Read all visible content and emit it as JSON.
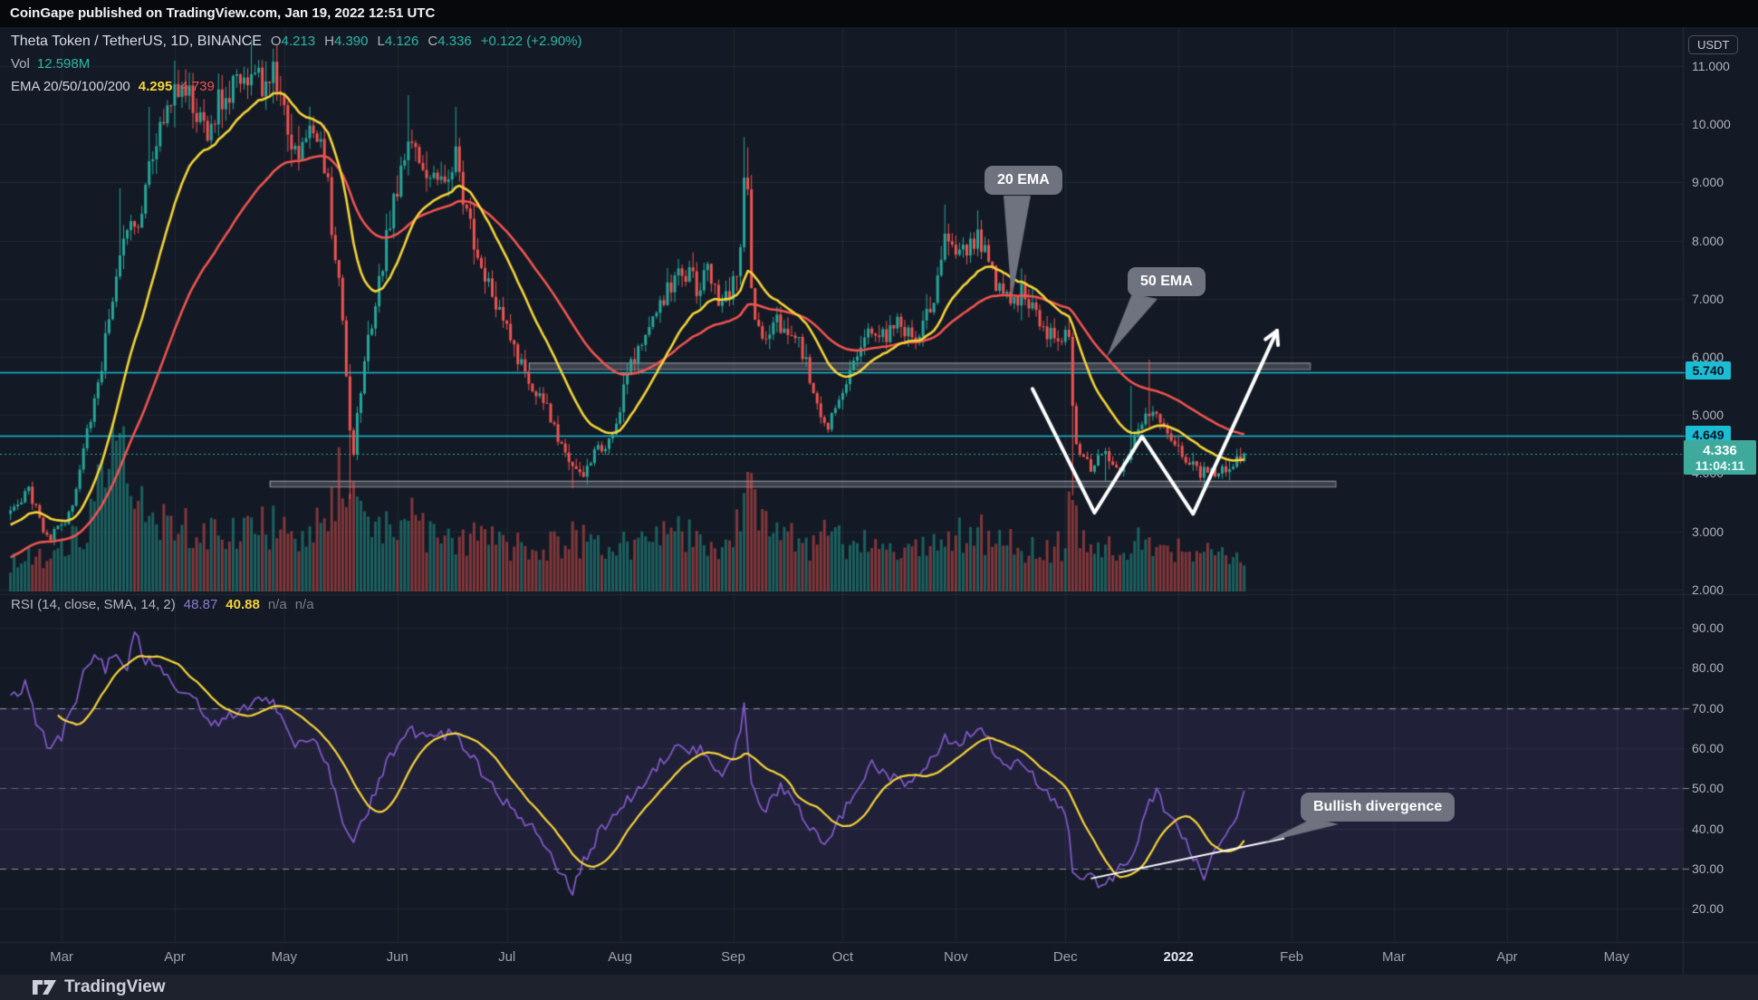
{
  "header": {
    "text": "CoinGape published on TradingView.com, Jan 19, 2022 12:51 UTC"
  },
  "legend": {
    "symbol_title": "Theta Token / TetherUS, 1D, BINANCE",
    "ohlc": [
      {
        "label": "O",
        "value": "4.213"
      },
      {
        "label": "H",
        "value": "4.390"
      },
      {
        "label": "L",
        "value": "4.126"
      },
      {
        "label": "C",
        "value": "4.336"
      }
    ],
    "change": "+0.122 (+2.90%)",
    "volume_label": "Vol",
    "volume_value": "12.598M",
    "ema_label": "EMA 20/50/100/200",
    "ema_values": [
      "4.295",
      "4.739"
    ],
    "rsi_label": "RSI (14, close, SMA, 14, 2)",
    "rsi_values": [
      "48.87",
      "40.88",
      "n/a",
      "n/a"
    ]
  },
  "price_axis": {
    "currency": "USDT",
    "ticks": [
      "11.000",
      "10.000",
      "9.000",
      "8.000",
      "7.000",
      "6.000",
      "5.000",
      "4.000",
      "3.000",
      "2.000"
    ],
    "level_labels": [
      {
        "text": "5.740",
        "price": 5.74
      },
      {
        "text": "4.649",
        "price": 4.649
      }
    ],
    "last_price": {
      "value": "4.336",
      "countdown": "11:04:11"
    }
  },
  "rsi_axis": {
    "ticks": [
      "90.00",
      "80.00",
      "70.00",
      "60.00",
      "50.00",
      "40.00",
      "30.00",
      "20.00"
    ]
  },
  "time_axis": {
    "labels": [
      {
        "text": "Mar",
        "t": 0
      },
      {
        "text": "Apr",
        "t": 31
      },
      {
        "text": "May",
        "t": 61
      },
      {
        "text": "Jun",
        "t": 92
      },
      {
        "text": "Jul",
        "t": 122
      },
      {
        "text": "Aug",
        "t": 153
      },
      {
        "text": "Sep",
        "t": 184
      },
      {
        "text": "Oct",
        "t": 214
      },
      {
        "text": "Nov",
        "t": 245
      },
      {
        "text": "Dec",
        "t": 275
      },
      {
        "text": "2022",
        "t": 306,
        "bold": true
      },
      {
        "text": "Feb",
        "t": 337
      },
      {
        "text": "Mar",
        "t": 365
      },
      {
        "text": "Apr",
        "t": 396
      },
      {
        "text": "May",
        "t": 426
      }
    ]
  },
  "annotations": {
    "ema20": "20 EMA",
    "ema50": "50 EMA",
    "bullish": "Bullish divergence"
  },
  "footer": {
    "brand": "TradingView"
  },
  "colors": {
    "background": "#131a25",
    "header_bg": "#07080c",
    "footer_bg": "#1d222c",
    "grid": "rgba(255,255,255,0.06)",
    "separator": "#262b36",
    "up": "#26a69a",
    "down": "#ef5350",
    "vol_up": "rgba(38,166,154,0.5)",
    "vol_down": "rgba(239,83,80,0.5)",
    "ema20": "#f5d33a",
    "ema50": "#ef5350",
    "rsi": "#7e57c2",
    "rsi_sma": "#f5d33a",
    "level_line": "#1cbdd4",
    "last_price_line": "#26a69a",
    "zone_fill": "rgba(140,143,153,0.35)",
    "zone_border": "rgba(220,223,230,0.6)",
    "annotation_white": "#ffffff",
    "bubble_bg": "#6f7380",
    "band_fill": "rgba(126,87,194,0.13)",
    "dash_line": "rgba(255,255,255,0.5)",
    "dash_line_mid": "rgba(255,255,255,0.28)"
  },
  "chart_data": {
    "type": "candlestick",
    "symbol": "Theta Token / TetherUS",
    "interval": "1D",
    "exchange": "BINANCE",
    "panes": [
      "price+volume",
      "RSI"
    ],
    "price_axis_range": [
      2.0,
      11.65
    ],
    "rsi_axis_range": [
      20,
      90
    ],
    "time_start_days_before_mar1": 14,
    "time_end_day": 324,
    "last_candle": {
      "open": 4.213,
      "high": 4.39,
      "low": 4.126,
      "close": 4.336
    },
    "price_anchors": [
      [
        -14,
        3.3
      ],
      [
        -11,
        3.55
      ],
      [
        -9,
        3.75
      ],
      [
        -7,
        3.4
      ],
      [
        -5,
        3.0
      ],
      [
        -3,
        2.9
      ],
      [
        -1,
        3.05
      ],
      [
        1,
        3.15
      ],
      [
        3,
        3.5
      ],
      [
        5,
        4.1
      ],
      [
        7,
        4.7
      ],
      [
        9,
        5.3
      ],
      [
        11,
        5.9
      ],
      [
        13,
        6.6
      ],
      [
        15,
        7.4
      ],
      [
        17,
        8.0
      ],
      [
        19,
        8.5
      ],
      [
        21,
        8.3
      ],
      [
        23,
        8.9
      ],
      [
        25,
        9.5
      ],
      [
        27,
        9.8
      ],
      [
        29,
        10.2
      ],
      [
        31,
        10.5
      ],
      [
        34,
        10.7
      ],
      [
        37,
        10.2
      ],
      [
        40,
        9.8
      ],
      [
        43,
        10.3
      ],
      [
        46,
        10.6
      ],
      [
        49,
        10.8
      ],
      [
        52,
        10.9
      ],
      [
        55,
        10.7
      ],
      [
        58,
        10.9
      ],
      [
        61,
        10.3
      ],
      [
        63,
        9.8
      ],
      [
        65,
        9.4
      ],
      [
        67,
        9.7
      ],
      [
        69,
        9.9
      ],
      [
        71,
        9.6
      ],
      [
        73,
        8.9
      ],
      [
        74,
        8.2
      ],
      [
        76,
        7.2
      ],
      [
        77,
        6.5
      ],
      [
        78,
        5.6
      ],
      [
        79,
        4.6
      ],
      [
        80,
        4.3
      ],
      [
        81,
        5.0
      ],
      [
        83,
        5.8
      ],
      [
        85,
        6.6
      ],
      [
        87,
        7.3
      ],
      [
        88,
        7.6
      ],
      [
        90,
        8.4
      ],
      [
        92,
        9.0
      ],
      [
        94,
        9.4
      ],
      [
        96,
        9.6
      ],
      [
        98,
        9.2
      ],
      [
        100,
        8.9
      ],
      [
        102,
        9.1
      ],
      [
        104,
        9.0
      ],
      [
        106,
        9.3
      ],
      [
        108,
        9.4
      ],
      [
        110,
        8.7
      ],
      [
        112,
        8.3
      ],
      [
        114,
        7.8
      ],
      [
        117,
        7.2
      ],
      [
        120,
        6.8
      ],
      [
        123,
        6.3
      ],
      [
        126,
        5.9
      ],
      [
        129,
        5.5
      ],
      [
        132,
        5.2
      ],
      [
        135,
        4.8
      ],
      [
        138,
        4.4
      ],
      [
        141,
        4.1
      ],
      [
        143,
        3.95
      ],
      [
        145,
        4.2
      ],
      [
        147,
        4.5
      ],
      [
        149,
        4.4
      ],
      [
        151,
        4.7
      ],
      [
        153,
        5.1
      ],
      [
        156,
        5.9
      ],
      [
        159,
        6.3
      ],
      [
        162,
        6.7
      ],
      [
        165,
        7.0
      ],
      [
        168,
        7.3
      ],
      [
        171,
        7.5
      ],
      [
        174,
        7.2
      ],
      [
        177,
        7.4
      ],
      [
        180,
        6.9
      ],
      [
        183,
        7.1
      ],
      [
        185,
        7.4
      ],
      [
        186,
        8.0
      ],
      [
        187,
        9.0
      ],
      [
        188,
        8.8
      ],
      [
        189,
        7.0
      ],
      [
        191,
        6.4
      ],
      [
        193,
        6.2
      ],
      [
        196,
        6.6
      ],
      [
        199,
        6.5
      ],
      [
        202,
        6.2
      ],
      [
        204,
        5.9
      ],
      [
        206,
        5.4
      ],
      [
        208,
        5.0
      ],
      [
        210,
        4.85
      ],
      [
        212,
        5.1
      ],
      [
        214,
        5.5
      ],
      [
        217,
        5.9
      ],
      [
        220,
        6.3
      ],
      [
        223,
        6.5
      ],
      [
        226,
        6.3
      ],
      [
        229,
        6.6
      ],
      [
        232,
        6.4
      ],
      [
        235,
        6.3
      ],
      [
        236,
        6.5
      ],
      [
        239,
        7.0
      ],
      [
        242,
        8.0
      ],
      [
        245,
        7.7
      ],
      [
        248,
        7.9
      ],
      [
        251,
        8.1
      ],
      [
        254,
        7.6
      ],
      [
        257,
        7.2
      ],
      [
        260,
        6.9
      ],
      [
        263,
        7.1
      ],
      [
        266,
        6.8
      ],
      [
        269,
        6.5
      ],
      [
        272,
        6.4
      ],
      [
        274,
        6.3
      ],
      [
        276,
        6.35
      ],
      [
        277,
        5.1
      ],
      [
        278,
        4.5
      ],
      [
        280,
        4.3
      ],
      [
        282,
        4.05
      ],
      [
        284,
        4.2
      ],
      [
        286,
        4.4
      ],
      [
        288,
        4.15
      ],
      [
        290,
        4.05
      ],
      [
        292,
        4.2
      ],
      [
        294,
        4.7
      ],
      [
        296,
        4.9
      ],
      [
        298,
        5.1
      ],
      [
        300,
        4.95
      ],
      [
        302,
        4.75
      ],
      [
        304,
        4.55
      ],
      [
        306,
        4.4
      ],
      [
        308,
        4.25
      ],
      [
        310,
        4.1
      ],
      [
        312,
        3.98
      ],
      [
        314,
        4.05
      ],
      [
        316,
        4.0
      ],
      [
        318,
        4.12
      ],
      [
        320,
        4.08
      ],
      [
        322,
        4.18
      ],
      [
        324,
        4.336
      ]
    ],
    "wick_spike_highs": {
      "16": 8.9,
      "24": 10.3,
      "52": 11.45,
      "58": 11.3,
      "95": 10.5,
      "108": 10.3,
      "187": 9.78,
      "188": 9.6,
      "242": 8.62,
      "251": 8.52,
      "293": 5.5,
      "298": 5.95
    },
    "wick_spike_lows": {
      "79": 3.55,
      "140": 3.74,
      "277": 3.62,
      "286": 3.85,
      "313": 3.74
    },
    "volume_anchors": [
      [
        -14,
        0.22
      ],
      [
        -8,
        0.3
      ],
      [
        -2,
        0.25
      ],
      [
        2,
        0.35
      ],
      [
        6,
        0.5
      ],
      [
        10,
        0.8
      ],
      [
        13,
        0.95
      ],
      [
        16,
        1.0
      ],
      [
        20,
        0.7
      ],
      [
        24,
        0.6
      ],
      [
        28,
        0.55
      ],
      [
        32,
        0.5
      ],
      [
        36,
        0.45
      ],
      [
        40,
        0.42
      ],
      [
        45,
        0.4
      ],
      [
        50,
        0.45
      ],
      [
        55,
        0.5
      ],
      [
        60,
        0.48
      ],
      [
        65,
        0.45
      ],
      [
        70,
        0.5
      ],
      [
        74,
        0.6
      ],
      [
        77,
        0.95
      ],
      [
        79,
        1.0
      ],
      [
        81,
        0.8
      ],
      [
        84,
        0.65
      ],
      [
        88,
        0.55
      ],
      [
        92,
        0.5
      ],
      [
        95,
        0.55
      ],
      [
        100,
        0.45
      ],
      [
        105,
        0.42
      ],
      [
        110,
        0.4
      ],
      [
        115,
        0.38
      ],
      [
        120,
        0.35
      ],
      [
        125,
        0.33
      ],
      [
        130,
        0.32
      ],
      [
        135,
        0.35
      ],
      [
        140,
        0.42
      ],
      [
        145,
        0.35
      ],
      [
        150,
        0.32
      ],
      [
        155,
        0.35
      ],
      [
        160,
        0.38
      ],
      [
        165,
        0.4
      ],
      [
        170,
        0.42
      ],
      [
        175,
        0.38
      ],
      [
        180,
        0.35
      ],
      [
        184,
        0.4
      ],
      [
        187,
        0.65
      ],
      [
        189,
        0.7
      ],
      [
        192,
        0.5
      ],
      [
        196,
        0.4
      ],
      [
        200,
        0.38
      ],
      [
        205,
        0.35
      ],
      [
        209,
        0.4
      ],
      [
        214,
        0.38
      ],
      [
        218,
        0.36
      ],
      [
        222,
        0.38
      ],
      [
        227,
        0.35
      ],
      [
        232,
        0.32
      ],
      [
        236,
        0.35
      ],
      [
        240,
        0.4
      ],
      [
        243,
        0.5
      ],
      [
        247,
        0.42
      ],
      [
        251,
        0.45
      ],
      [
        255,
        0.4
      ],
      [
        259,
        0.35
      ],
      [
        263,
        0.33
      ],
      [
        267,
        0.3
      ],
      [
        271,
        0.3
      ],
      [
        275,
        0.38
      ],
      [
        277,
        0.85
      ],
      [
        279,
        0.5
      ],
      [
        282,
        0.4
      ],
      [
        285,
        0.35
      ],
      [
        288,
        0.32
      ],
      [
        291,
        0.3
      ],
      [
        294,
        0.35
      ],
      [
        297,
        0.45
      ],
      [
        300,
        0.4
      ],
      [
        303,
        0.35
      ],
      [
        306,
        0.3
      ],
      [
        309,
        0.28
      ],
      [
        312,
        0.3
      ],
      [
        315,
        0.27
      ],
      [
        318,
        0.26
      ],
      [
        321,
        0.28
      ],
      [
        324,
        0.3
      ]
    ],
    "rsi_anchors": [
      [
        -14,
        72
      ],
      [
        -10,
        76
      ],
      [
        -6,
        64
      ],
      [
        -3,
        60
      ],
      [
        0,
        63
      ],
      [
        3,
        70
      ],
      [
        6,
        78
      ],
      [
        9,
        84
      ],
      [
        12,
        80
      ],
      [
        15,
        84
      ],
      [
        18,
        80
      ],
      [
        20,
        89
      ],
      [
        23,
        82
      ],
      [
        26,
        80
      ],
      [
        30,
        76
      ],
      [
        34,
        74
      ],
      [
        38,
        70
      ],
      [
        42,
        66
      ],
      [
        46,
        68
      ],
      [
        50,
        70
      ],
      [
        54,
        72
      ],
      [
        58,
        71
      ],
      [
        61,
        66
      ],
      [
        64,
        60
      ],
      [
        67,
        63
      ],
      [
        70,
        62
      ],
      [
        73,
        55
      ],
      [
        76,
        45
      ],
      [
        78,
        40
      ],
      [
        80,
        36
      ],
      [
        82,
        42
      ],
      [
        84,
        45
      ],
      [
        87,
        52
      ],
      [
        90,
        58
      ],
      [
        93,
        62
      ],
      [
        95,
        66
      ],
      [
        98,
        63
      ],
      [
        100,
        62
      ],
      [
        104,
        63
      ],
      [
        108,
        64
      ],
      [
        112,
        58
      ],
      [
        116,
        53
      ],
      [
        120,
        48
      ],
      [
        124,
        44
      ],
      [
        128,
        41
      ],
      [
        132,
        37
      ],
      [
        136,
        30
      ],
      [
        140,
        24
      ],
      [
        143,
        32
      ],
      [
        145,
        35
      ],
      [
        148,
        40
      ],
      [
        151,
        43
      ],
      [
        154,
        46
      ],
      [
        158,
        50
      ],
      [
        162,
        54
      ],
      [
        166,
        58
      ],
      [
        169,
        62
      ],
      [
        172,
        60
      ],
      [
        175,
        60
      ],
      [
        178,
        56
      ],
      [
        181,
        54
      ],
      [
        184,
        58
      ],
      [
        186,
        65
      ],
      [
        187,
        70
      ],
      [
        189,
        50
      ],
      [
        191,
        46
      ],
      [
        193,
        45
      ],
      [
        197,
        50
      ],
      [
        201,
        46
      ],
      [
        205,
        40
      ],
      [
        209,
        35
      ],
      [
        213,
        42
      ],
      [
        218,
        50
      ],
      [
        222,
        56
      ],
      [
        227,
        53
      ],
      [
        231,
        50
      ],
      [
        236,
        54
      ],
      [
        239,
        58
      ],
      [
        242,
        63
      ],
      [
        245,
        61
      ],
      [
        247,
        62
      ],
      [
        251,
        66
      ],
      [
        255,
        60
      ],
      [
        259,
        55
      ],
      [
        263,
        57
      ],
      [
        267,
        52
      ],
      [
        271,
        48
      ],
      [
        274,
        44
      ],
      [
        276,
        40
      ],
      [
        277,
        30
      ],
      [
        280,
        28
      ],
      [
        283,
        27
      ],
      [
        286,
        25.5
      ],
      [
        289,
        29
      ],
      [
        292,
        31
      ],
      [
        295,
        38
      ],
      [
        298,
        47
      ],
      [
        300,
        49
      ],
      [
        303,
        44
      ],
      [
        306,
        40
      ],
      [
        309,
        35
      ],
      [
        311,
        31
      ],
      [
        313,
        28.5
      ],
      [
        315,
        32
      ],
      [
        317,
        35
      ],
      [
        319,
        38
      ],
      [
        321,
        41
      ],
      [
        323,
        45
      ],
      [
        324,
        48.9
      ]
    ],
    "horizontal_levels": [
      5.74,
      4.649
    ],
    "last_price": 4.336,
    "zones": [
      {
        "name": "resistance-zone",
        "price_top": 5.9,
        "price_bottom": 5.79,
        "t_start": 128,
        "t_end": 342
      },
      {
        "name": "support-zone",
        "price_top": 3.87,
        "price_bottom": 3.77,
        "t_start": 57,
        "t_end": 349
      }
    ],
    "w_pattern_points": [
      [
        266,
        5.45
      ],
      [
        283,
        3.32
      ],
      [
        296,
        4.63
      ],
      [
        310,
        3.3
      ],
      [
        333,
        6.45
      ]
    ],
    "rsi_trendline": [
      [
        282,
        27.5
      ],
      [
        335,
        37.5
      ]
    ],
    "rsi_bands": {
      "upper": 70,
      "middle": 50,
      "lower": 30
    }
  }
}
